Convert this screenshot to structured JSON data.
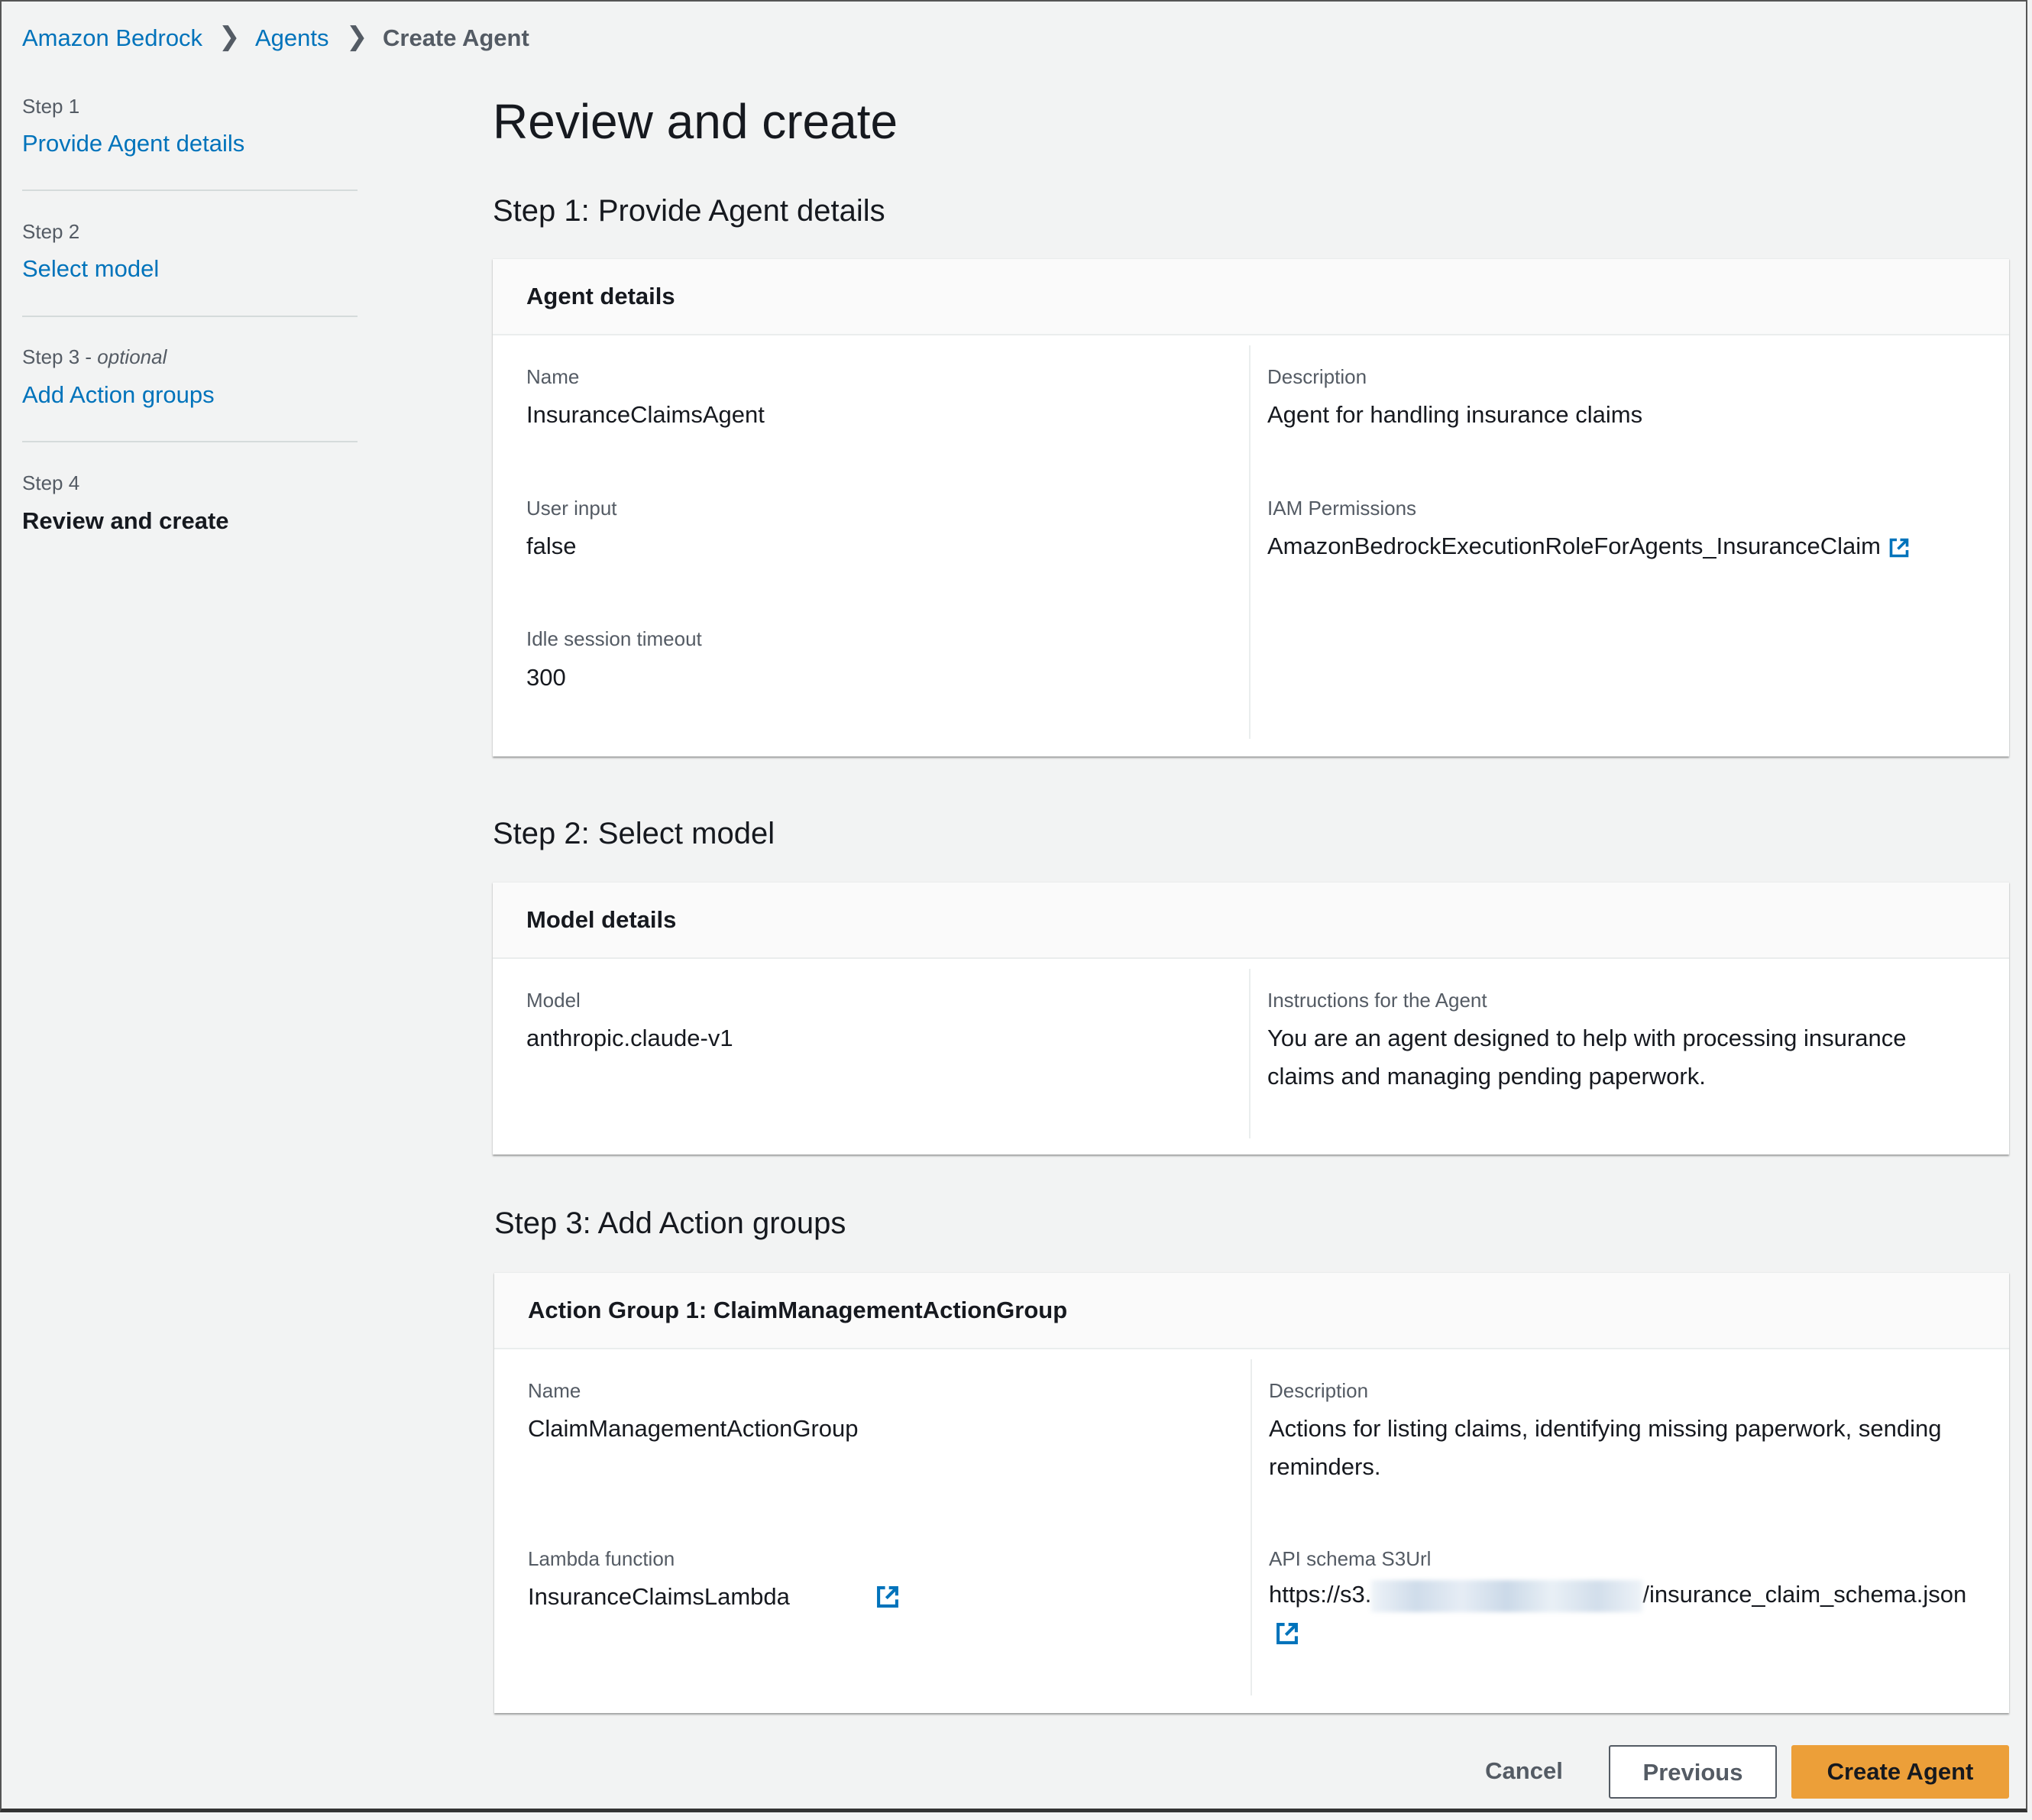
{
  "breadcrumb": {
    "items": [
      "Amazon Bedrock",
      "Agents",
      "Create Agent"
    ]
  },
  "sidebar": {
    "steps": [
      {
        "label": "Step 1",
        "title": "Provide Agent details"
      },
      {
        "label": "Step 2",
        "title": "Select model"
      },
      {
        "label": "Step 3",
        "optional": "optional",
        "title": "Add Action groups"
      },
      {
        "label": "Step 4",
        "title": "Review and create"
      }
    ]
  },
  "page_title": "Review and create",
  "step1": {
    "heading": "Step 1: Provide Agent details",
    "card_title": "Agent details",
    "name_label": "Name",
    "name": "InsuranceClaimsAgent",
    "user_input_label": "User input",
    "user_input": "false",
    "idle_label": "Idle session timeout",
    "idle": "300",
    "description_label": "Description",
    "description": "Agent for handling insurance claims",
    "iam_label": "IAM Permissions",
    "iam": "AmazonBedrockExecutionRoleForAgents_InsuranceClaim"
  },
  "step2": {
    "heading": "Step 2: Select model",
    "card_title": "Model details",
    "model_label": "Model",
    "model": "anthropic.claude-v1",
    "instructions_label": "Instructions for the Agent",
    "instructions_line1": "You are an agent designed to help with processing insurance",
    "instructions_line2": "claims and managing pending paperwork."
  },
  "step3": {
    "heading": "Step 3: Add Action groups",
    "card_title": "Action Group 1: ClaimManagementActionGroup",
    "name_label": "Name",
    "name": "ClaimManagementActionGroup",
    "description_label": "Description",
    "description_line1": "Actions for listing claims, identifying missing paperwork, sending",
    "description_line2": "reminders.",
    "lambda_label": "Lambda function",
    "lambda": "InsuranceClaimsLambda",
    "schema_label": "API schema S3Url",
    "schema_prefix": "https://s3.",
    "schema_suffix": "/insurance_claim_schema.json"
  },
  "actions": {
    "cancel": "Cancel",
    "previous": "Previous",
    "create": "Create Agent"
  },
  "colors": {
    "link": "#0073bb",
    "primary": "#ec9f39",
    "background": "#f2f3f3"
  }
}
